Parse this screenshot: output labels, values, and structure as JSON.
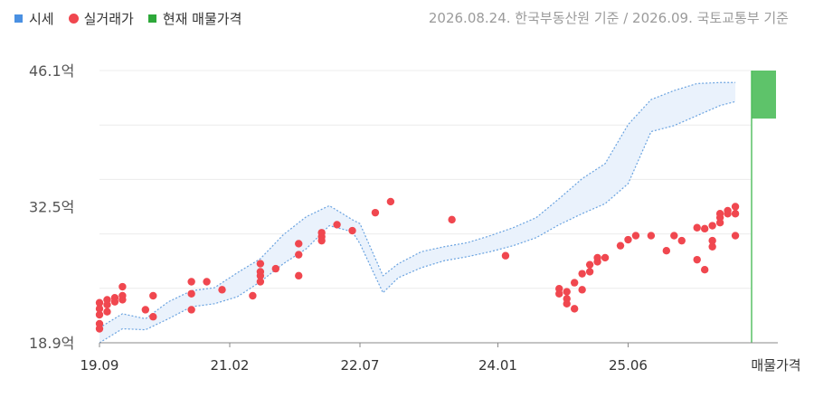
{
  "legend": [
    {
      "label": "시세",
      "color": "#4a90e2",
      "shape": "square"
    },
    {
      "label": "실거래가",
      "color": "#f0474f",
      "shape": "circle"
    },
    {
      "label": "현재 매물가격",
      "color": "#2ea83a",
      "shape": "square"
    }
  ],
  "source": "2026.08.24. 한국부동산원 기준 / 2026.09. 국토교통부 기준",
  "chart_data": {
    "type": "scatter",
    "y_unit": "억",
    "y_range": [
      18.9,
      46.1
    ],
    "y_ticks": [
      {
        "value": 46.1,
        "label": "46.1억"
      },
      {
        "value": 32.5,
        "label": "32.5억"
      },
      {
        "value": 18.9,
        "label": "18.9억"
      }
    ],
    "x_range": [
      "2019-09",
      "2026-10"
    ],
    "x_ticks": [
      {
        "x": "2019-09",
        "label": "19.09"
      },
      {
        "x": "2021-02",
        "label": "21.02"
      },
      {
        "x": "2022-07",
        "label": "22.07"
      },
      {
        "x": "2024-01",
        "label": "24.01"
      },
      {
        "x": "2025-06",
        "label": "25.06"
      }
    ],
    "extra_x_label": "매물가격",
    "grid": true,
    "price_band": {
      "x": [
        "2019-09",
        "2019-12",
        "2020-03",
        "2020-06",
        "2020-09",
        "2020-12",
        "2021-03",
        "2021-06",
        "2021-09",
        "2021-12",
        "2022-03",
        "2022-06",
        "2022-07",
        "2022-10",
        "2022-12",
        "2023-03",
        "2023-06",
        "2023-09",
        "2023-12",
        "2024-03",
        "2024-06",
        "2024-09",
        "2024-12",
        "2025-03",
        "2025-06",
        "2025-09",
        "2025-12",
        "2026-03",
        "2026-06",
        "2026-08"
      ],
      "low": [
        18.9,
        20.3,
        20.2,
        21.3,
        22.5,
        22.8,
        23.5,
        25.0,
        26.8,
        28.3,
        30.6,
        30.0,
        28.8,
        23.9,
        25.4,
        26.4,
        27.1,
        27.5,
        28.0,
        28.6,
        29.4,
        30.7,
        31.8,
        32.8,
        34.8,
        40.0,
        40.6,
        41.6,
        42.6,
        43.0
      ],
      "high": [
        20.4,
        21.8,
        21.3,
        23.0,
        24.1,
        24.4,
        25.9,
        27.3,
        29.7,
        31.5,
        32.6,
        31.2,
        30.8,
        25.6,
        26.8,
        28.0,
        28.5,
        28.9,
        29.6,
        30.4,
        31.4,
        33.3,
        35.3,
        36.8,
        40.7,
        43.2,
        44.1,
        44.8,
        44.9,
        44.9
      ]
    },
    "transactions": [
      {
        "x": "2019-09",
        "y": 20.3
      },
      {
        "x": "2019-09",
        "y": 20.8
      },
      {
        "x": "2019-09",
        "y": 21.7
      },
      {
        "x": "2019-09",
        "y": 22.3
      },
      {
        "x": "2019-09",
        "y": 22.9
      },
      {
        "x": "2019-10",
        "y": 22.0
      },
      {
        "x": "2019-10",
        "y": 22.7
      },
      {
        "x": "2019-10",
        "y": 23.2
      },
      {
        "x": "2019-11",
        "y": 23.0
      },
      {
        "x": "2019-11",
        "y": 23.4
      },
      {
        "x": "2019-12",
        "y": 23.2
      },
      {
        "x": "2019-12",
        "y": 23.6
      },
      {
        "x": "2019-12",
        "y": 24.5
      },
      {
        "x": "2020-03",
        "y": 22.2
      },
      {
        "x": "2020-04",
        "y": 21.5
      },
      {
        "x": "2020-04",
        "y": 23.6
      },
      {
        "x": "2020-09",
        "y": 22.2
      },
      {
        "x": "2020-09",
        "y": 23.8
      },
      {
        "x": "2020-09",
        "y": 25.0
      },
      {
        "x": "2020-11",
        "y": 25.0
      },
      {
        "x": "2021-01",
        "y": 24.2
      },
      {
        "x": "2021-05",
        "y": 23.6
      },
      {
        "x": "2021-06",
        "y": 25.0
      },
      {
        "x": "2021-06",
        "y": 25.6
      },
      {
        "x": "2021-06",
        "y": 26.0
      },
      {
        "x": "2021-06",
        "y": 26.8
      },
      {
        "x": "2021-08",
        "y": 26.3
      },
      {
        "x": "2021-11",
        "y": 25.6
      },
      {
        "x": "2021-11",
        "y": 27.7
      },
      {
        "x": "2021-11",
        "y": 28.8
      },
      {
        "x": "2022-02",
        "y": 29.1
      },
      {
        "x": "2022-02",
        "y": 29.5
      },
      {
        "x": "2022-02",
        "y": 29.9
      },
      {
        "x": "2022-04",
        "y": 30.7
      },
      {
        "x": "2022-06",
        "y": 30.1
      },
      {
        "x": "2022-09",
        "y": 31.9
      },
      {
        "x": "2022-11",
        "y": 33.0
      },
      {
        "x": "2023-07",
        "y": 31.2
      },
      {
        "x": "2024-02",
        "y": 27.6
      },
      {
        "x": "2024-09",
        "y": 23.8
      },
      {
        "x": "2024-09",
        "y": 24.3
      },
      {
        "x": "2024-10",
        "y": 22.8
      },
      {
        "x": "2024-10",
        "y": 23.3
      },
      {
        "x": "2024-10",
        "y": 24.0
      },
      {
        "x": "2024-11",
        "y": 22.3
      },
      {
        "x": "2024-11",
        "y": 24.9
      },
      {
        "x": "2024-12",
        "y": 24.2
      },
      {
        "x": "2024-12",
        "y": 25.8
      },
      {
        "x": "2025-01",
        "y": 26.0
      },
      {
        "x": "2025-01",
        "y": 26.7
      },
      {
        "x": "2025-02",
        "y": 27.0
      },
      {
        "x": "2025-02",
        "y": 27.4
      },
      {
        "x": "2025-03",
        "y": 27.4
      },
      {
        "x": "2025-05",
        "y": 28.6
      },
      {
        "x": "2025-06",
        "y": 29.2
      },
      {
        "x": "2025-07",
        "y": 29.6
      },
      {
        "x": "2025-09",
        "y": 29.6
      },
      {
        "x": "2025-11",
        "y": 28.1
      },
      {
        "x": "2025-12",
        "y": 29.6
      },
      {
        "x": "2026-01",
        "y": 29.1
      },
      {
        "x": "2026-03",
        "y": 27.2
      },
      {
        "x": "2026-03",
        "y": 30.4
      },
      {
        "x": "2026-04",
        "y": 26.2
      },
      {
        "x": "2026-04",
        "y": 30.3
      },
      {
        "x": "2026-05",
        "y": 28.5
      },
      {
        "x": "2026-05",
        "y": 29.1
      },
      {
        "x": "2026-05",
        "y": 30.6
      },
      {
        "x": "2026-06",
        "y": 30.9
      },
      {
        "x": "2026-06",
        "y": 31.4
      },
      {
        "x": "2026-06",
        "y": 31.8
      },
      {
        "x": "2026-07",
        "y": 31.8
      },
      {
        "x": "2026-07",
        "y": 32.1
      },
      {
        "x": "2026-08",
        "y": 29.6
      },
      {
        "x": "2026-08",
        "y": 31.8
      },
      {
        "x": "2026-08",
        "y": 32.5
      }
    ],
    "current_listing": {
      "low": 41.3,
      "high": 46.1,
      "color": "#4cbc5a"
    }
  }
}
